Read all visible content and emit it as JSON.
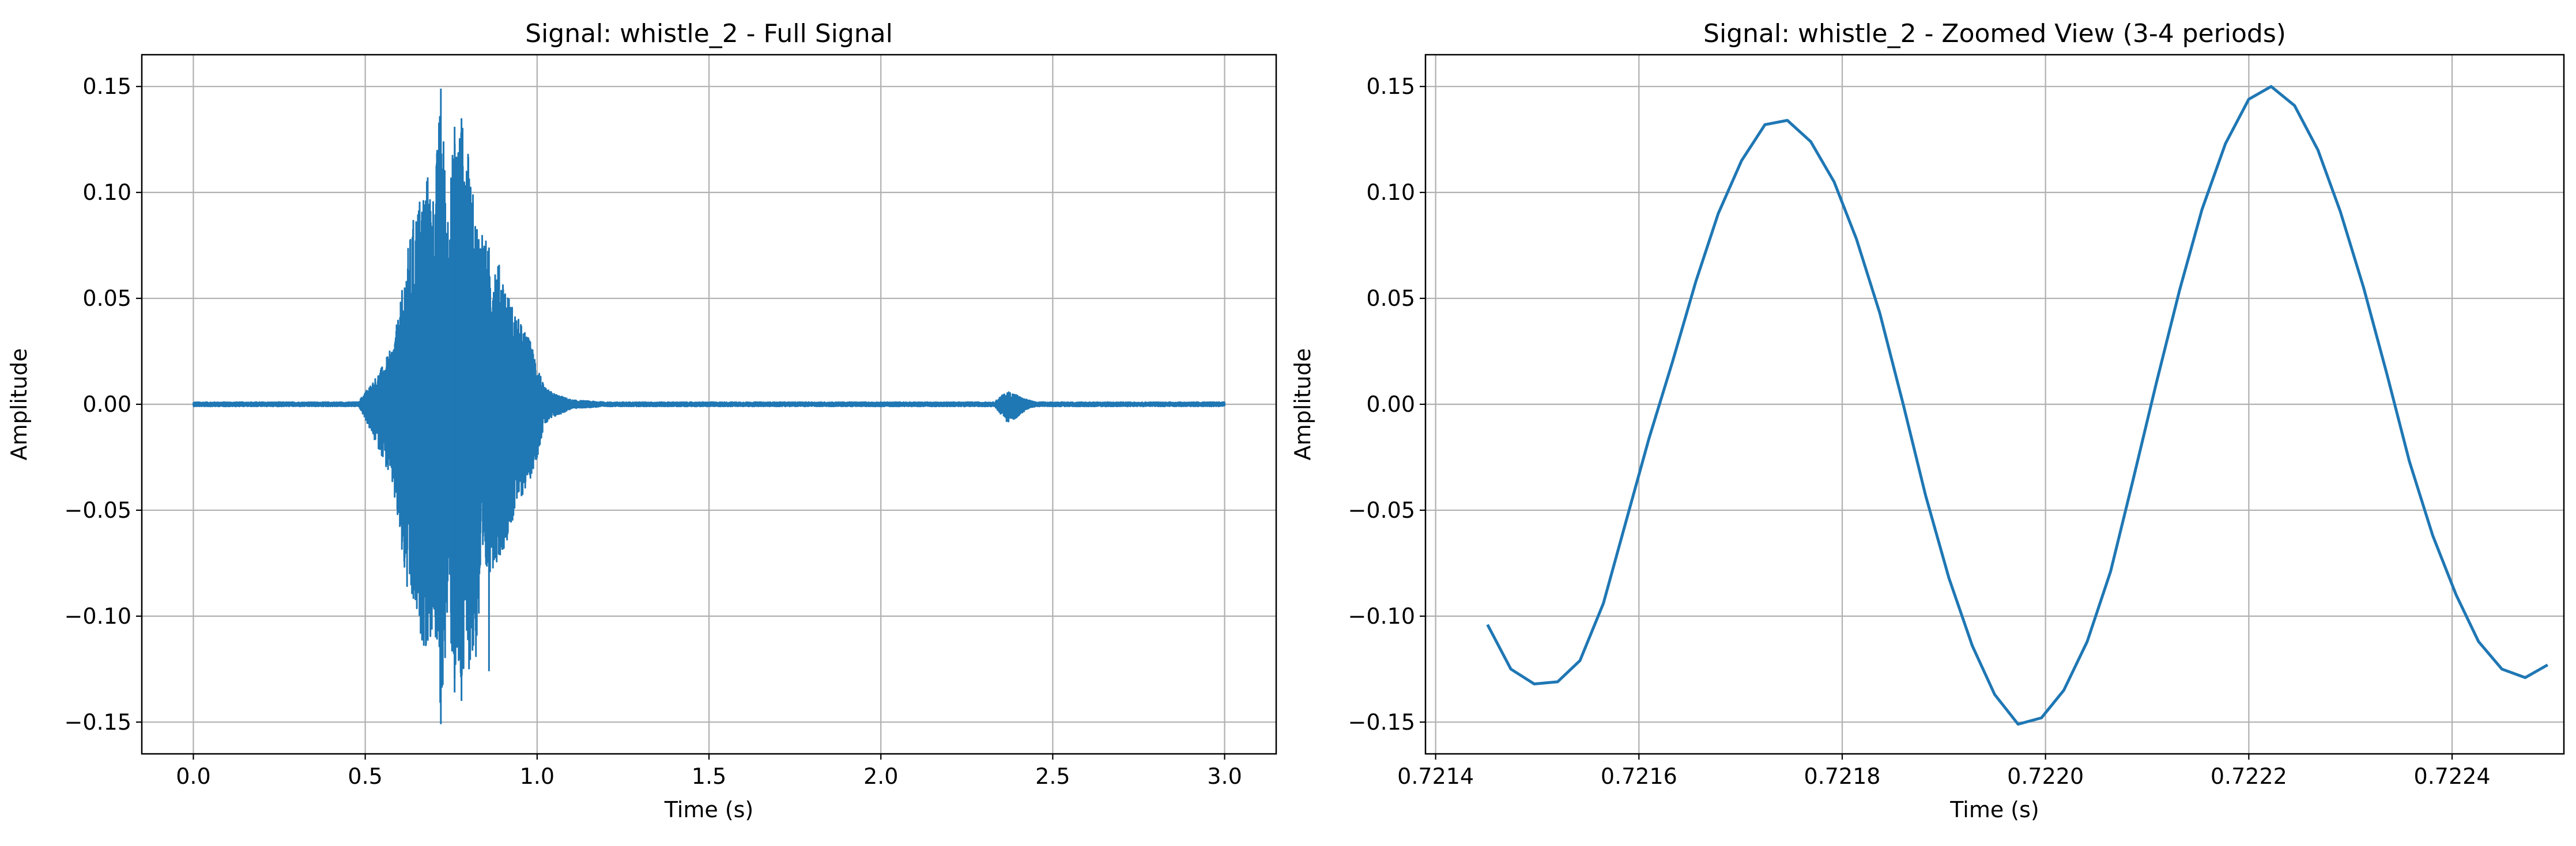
{
  "chart_data": [
    {
      "type": "line",
      "title": "Signal: whistle_2 - Full Signal",
      "xlabel": "Time (s)",
      "ylabel": "Amplitude",
      "xlim": [
        -0.15,
        3.15
      ],
      "ylim": [
        -0.165,
        0.165
      ],
      "xticks": [
        0.0,
        0.5,
        1.0,
        1.5,
        2.0,
        2.5,
        3.0
      ],
      "xtick_labels": [
        "0.0",
        "0.5",
        "1.0",
        "1.5",
        "2.0",
        "2.5",
        "3.0"
      ],
      "yticks": [
        -0.15,
        -0.1,
        -0.05,
        0.0,
        0.05,
        0.1,
        0.15
      ],
      "ytick_labels": [
        "−0.15",
        "−0.10",
        "−0.05",
        "0.00",
        "0.05",
        "0.10",
        "0.15"
      ],
      "grid": true,
      "color": "#1f77b4",
      "series": [
        {
          "envelope_time": [
            0.0,
            0.48,
            0.5,
            0.52,
            0.55,
            0.58,
            0.6,
            0.62,
            0.64,
            0.66,
            0.68,
            0.7,
            0.72,
            0.74,
            0.76,
            0.78,
            0.8,
            0.82,
            0.84,
            0.86,
            0.88,
            0.9,
            0.92,
            0.94,
            0.96,
            0.98,
            1.0,
            1.02,
            1.05,
            1.1,
            1.2,
            2.33,
            2.35,
            2.37,
            2.39,
            2.41,
            2.43,
            2.45,
            2.5,
            3.0
          ],
          "envelope_max": [
            0.001,
            0.001,
            0.006,
            0.01,
            0.018,
            0.028,
            0.045,
            0.07,
            0.088,
            0.1,
            0.11,
            0.1,
            0.149,
            0.095,
            0.13,
            0.135,
            0.118,
            0.09,
            0.085,
            0.072,
            0.07,
            0.062,
            0.05,
            0.042,
            0.036,
            0.03,
            0.02,
            0.008,
            0.005,
            0.002,
            0.001,
            0.001,
            0.004,
            0.006,
            0.005,
            0.003,
            0.002,
            0.001,
            0.001,
            0.001
          ],
          "envelope_min": [
            -0.001,
            -0.001,
            -0.007,
            -0.015,
            -0.025,
            -0.04,
            -0.065,
            -0.09,
            -0.1,
            -0.11,
            -0.118,
            -0.105,
            -0.151,
            -0.1,
            -0.135,
            -0.14,
            -0.125,
            -0.125,
            -0.09,
            -0.08,
            -0.075,
            -0.07,
            -0.06,
            -0.05,
            -0.042,
            -0.035,
            -0.025,
            -0.01,
            -0.006,
            -0.002,
            -0.001,
            -0.001,
            -0.005,
            -0.009,
            -0.007,
            -0.004,
            -0.002,
            -0.001,
            -0.001,
            -0.001
          ]
        }
      ]
    },
    {
      "type": "line",
      "title": "Signal: whistle_2 - Zoomed View (3-4 periods)",
      "xlabel": "Time (s)",
      "ylabel": "Amplitude",
      "xlim": [
        0.72139,
        0.72251
      ],
      "ylim": [
        -0.165,
        0.165
      ],
      "xticks": [
        0.7214,
        0.7216,
        0.7218,
        0.722,
        0.7222,
        0.7224
      ],
      "xtick_labels": [
        "0.7214",
        "0.7216",
        "0.7218",
        "0.7220",
        "0.7222",
        "0.7224"
      ],
      "yticks": [
        -0.15,
        -0.1,
        -0.05,
        0.0,
        0.05,
        0.1,
        0.15
      ],
      "ytick_labels": [
        "−0.15",
        "−0.10",
        "−0.05",
        "0.00",
        "0.05",
        "0.10",
        "0.15"
      ],
      "grid": true,
      "color": "#1f77b4",
      "series": [
        {
          "x": [
            0.721451,
            0.721474,
            0.721497,
            0.72152,
            0.721542,
            0.721565,
            0.721588,
            0.72161,
            0.721633,
            0.721656,
            0.721678,
            0.721701,
            0.721724,
            0.721746,
            0.721769,
            0.721792,
            0.721814,
            0.721837,
            0.72186,
            0.721882,
            0.721905,
            0.721928,
            0.72195,
            0.721973,
            0.721996,
            0.722018,
            0.722041,
            0.722064,
            0.722086,
            0.722109,
            0.722132,
            0.722154,
            0.722177,
            0.7222,
            0.722222,
            0.722245,
            0.722268,
            0.72229,
            0.722313,
            0.722336,
            0.722358,
            0.722381,
            0.722404,
            0.722426,
            0.722449,
            0.722472,
            0.722494
          ],
          "y": [
            -0.104,
            -0.125,
            -0.132,
            -0.131,
            -0.121,
            -0.094,
            -0.054,
            -0.016,
            0.02,
            0.058,
            0.09,
            0.115,
            0.132,
            0.134,
            0.124,
            0.105,
            0.078,
            0.043,
            0.0,
            -0.043,
            -0.082,
            -0.114,
            -0.137,
            -0.151,
            -0.148,
            -0.135,
            -0.112,
            -0.079,
            -0.036,
            0.01,
            0.054,
            0.092,
            0.123,
            0.144,
            0.15,
            0.141,
            0.12,
            0.091,
            0.055,
            0.014,
            -0.027,
            -0.062,
            -0.09,
            -0.112,
            -0.125,
            -0.129,
            -0.123
          ]
        }
      ]
    }
  ]
}
